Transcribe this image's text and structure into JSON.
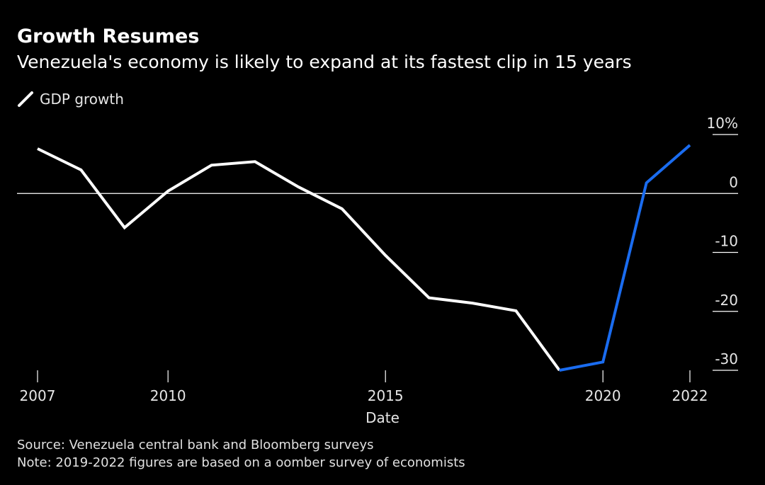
{
  "title": "Growth Resumes",
  "subtitle": "Venezuela's economy is likely to expand at its fastest clip in 15 years",
  "legend": {
    "label": "GDP growth",
    "icon": "diagonal-line-icon"
  },
  "source": "Source: Venezuela central bank and Bloomberg surveys",
  "note": "Note: 2019-2022 figures are based on a  oomber   survey of economists",
  "colors": {
    "background": "#000000",
    "actual": "#ffffff",
    "forecast": "#1a6cf0",
    "text": "#ffffff",
    "muted": "#dddddd"
  },
  "chart_data": {
    "type": "line",
    "title": "Growth Resumes",
    "subtitle": "Venezuela's economy is likely to expand at its fastest clip in 15 years",
    "xlabel": "Date",
    "ylabel": "",
    "x": [
      2007,
      2008,
      2009,
      2010,
      2011,
      2012,
      2013,
      2014,
      2015,
      2016,
      2017,
      2018,
      2019,
      2020,
      2021,
      2022
    ],
    "series": [
      {
        "name": "GDP growth",
        "segments": [
          {
            "status": "actual",
            "x": [
              2007,
              2008,
              2009,
              2010,
              2011,
              2012,
              2013,
              2014,
              2015,
              2016,
              2017,
              2018,
              2019
            ],
            "values": [
              7.6,
              4.0,
              -5.8,
              0.4,
              4.8,
              5.4,
              1.1,
              -2.6,
              -10.5,
              -17.7,
              -18.6,
              -19.9,
              -30.0
            ]
          },
          {
            "status": "forecast",
            "x": [
              2019,
              2020,
              2021,
              2022
            ],
            "values": [
              -30.0,
              -28.6,
              1.8,
              8.2
            ]
          }
        ]
      }
    ],
    "xticks": [
      2007,
      2010,
      2015,
      2020,
      2022
    ],
    "xtick_labels": [
      "2007",
      "2010",
      "2015",
      "2020",
      "2022"
    ],
    "yticks": [
      10,
      0,
      -10,
      -20,
      -30
    ],
    "ytick_labels": [
      "10%",
      "0",
      "-10",
      "-20",
      "-30"
    ],
    "xlim": [
      2007,
      2022
    ],
    "ylim": [
      -30,
      10
    ],
    "zero_line": true,
    "grid": false,
    "legend_position": "top-left"
  }
}
